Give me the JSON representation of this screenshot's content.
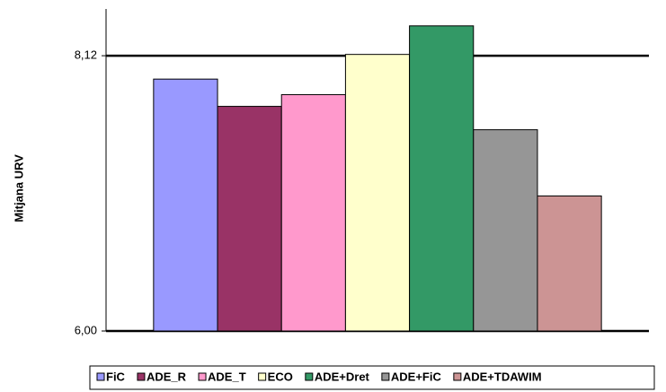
{
  "chart_data": {
    "type": "bar",
    "y_label": "Mitjana URV",
    "categories": [
      null
    ],
    "series": [
      {
        "name": "FiC",
        "color": "#9999ff",
        "values": [
          7.94
        ]
      },
      {
        "name": "ADE_R",
        "color": "#993366",
        "values": [
          7.73
        ]
      },
      {
        "name": "ADE_T",
        "color": "#ff99cc",
        "values": [
          7.82
        ]
      },
      {
        "name": "ECO",
        "color": "#ffffcc",
        "values": [
          8.13
        ]
      },
      {
        "name": "ADE+Dret",
        "color": "#339966",
        "values": [
          8.35
        ]
      },
      {
        "name": "ADE+FiC",
        "color": "#969696",
        "values": [
          7.55
        ]
      },
      {
        "name": "ADE+TDAWIM",
        "color": "#cc9494",
        "values": [
          7.04
        ]
      }
    ],
    "ylim": [
      6,
      8.48
    ],
    "yticks": [
      {
        "value": 6,
        "label": "6,00"
      },
      {
        "value": 8.12,
        "label": "8,12"
      }
    ],
    "grid": true,
    "legend": "bottom"
  }
}
